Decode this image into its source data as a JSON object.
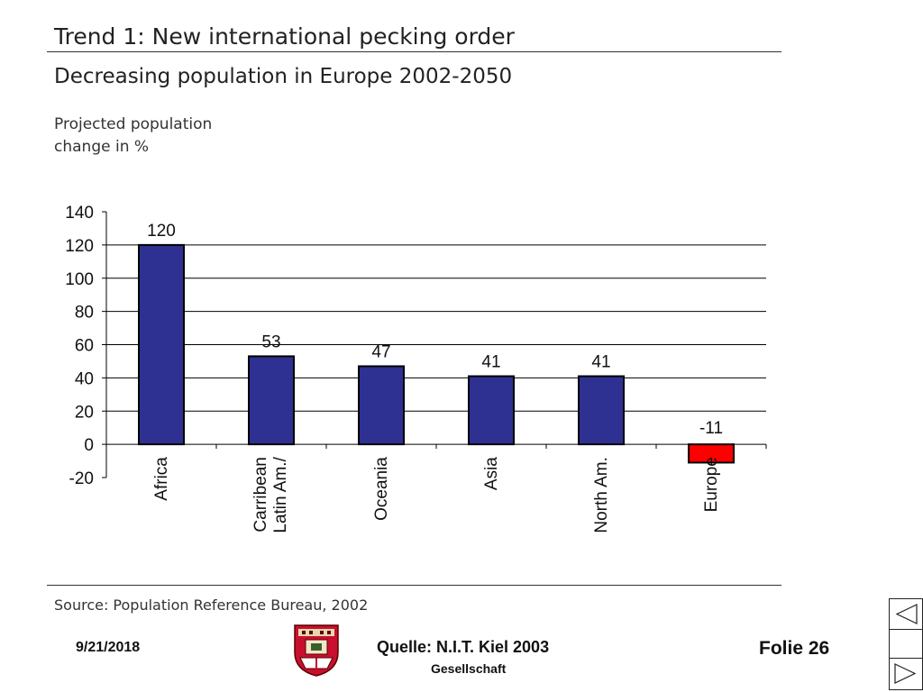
{
  "slide": {
    "title": "Trend 1: New international pecking order",
    "subtitle": "Decreasing population in Europe 2002-2050",
    "ylabel_line1": "Projected population",
    "ylabel_line2": "change in %",
    "source": "Source: Population Reference Bureau, 2002"
  },
  "footer": {
    "date": "9/21/2018",
    "source": "Quelle: N.I.T. Kiel 2003",
    "org": "Gesellschaft",
    "page": "Folie 26"
  },
  "colors": {
    "bar": "#2e3192",
    "bar_negative": "#ff0000",
    "axis": "#000000",
    "grid": "#000000"
  },
  "icons": {
    "crest": "coat-of-arms-icon",
    "prev": "triangle-left-icon",
    "next": "triangle-right-icon"
  },
  "chart_data": {
    "type": "bar",
    "categories": [
      "Africa",
      "Latin Am./\nCarribean",
      "Oceania",
      "Asia",
      "North Am.",
      "Europe"
    ],
    "values": [
      120,
      53,
      47,
      41,
      41,
      -11
    ],
    "data_labels": [
      "120",
      "53",
      "47",
      "41",
      "41",
      "-11"
    ],
    "title": "Decreasing population in Europe 2002-2050",
    "ylabel": "Projected population change in %",
    "xlabel": "",
    "ylim": [
      -20,
      140
    ],
    "yticks": [
      140,
      120,
      100,
      80,
      60,
      40,
      20,
      0,
      -20
    ],
    "grid": true,
    "legend": "none"
  }
}
